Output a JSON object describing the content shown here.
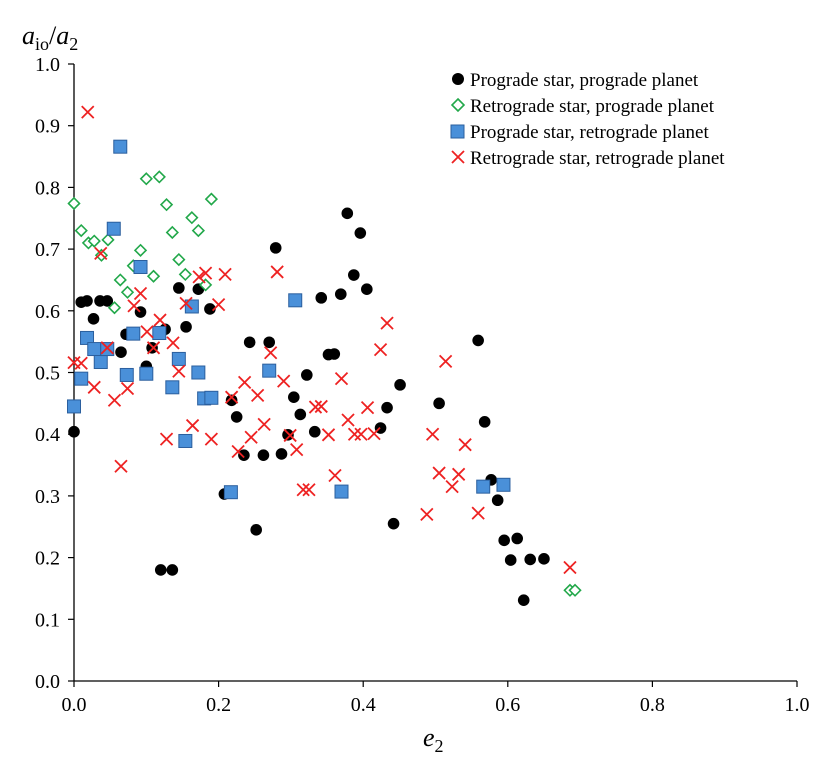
{
  "chart_data": {
    "type": "scatter",
    "title": "",
    "xlabel": {
      "main": "e",
      "sub": "2"
    },
    "ylabel": {
      "main": "a",
      "sub": "io",
      "sep": "/",
      "main2": "a",
      "sub2": "2"
    },
    "xlim": [
      0.0,
      1.0
    ],
    "ylim": [
      0.0,
      1.0
    ],
    "xticks": [
      "0.0",
      "0.2",
      "0.4",
      "0.6",
      "0.8",
      "1.0"
    ],
    "yticks": [
      "0.0",
      "0.1",
      "0.2",
      "0.3",
      "0.4",
      "0.5",
      "0.6",
      "0.7",
      "0.8",
      "0.9",
      "1.0"
    ],
    "xtick_values": [
      0.0,
      0.2,
      0.4,
      0.6,
      0.8,
      1.0
    ],
    "ytick_values": [
      0.0,
      0.1,
      0.2,
      0.3,
      0.4,
      0.5,
      0.6,
      0.7,
      0.8,
      0.9,
      1.0
    ],
    "legend_position": "top-right",
    "series": [
      {
        "name": "Prograde star, prograde planet",
        "marker": "circle",
        "color": "#000000",
        "points": [
          [
            0.0,
            0.404
          ],
          [
            0.01,
            0.614
          ],
          [
            0.018,
            0.616
          ],
          [
            0.027,
            0.587
          ],
          [
            0.036,
            0.616
          ],
          [
            0.046,
            0.616
          ],
          [
            0.065,
            0.533
          ],
          [
            0.072,
            0.562
          ],
          [
            0.092,
            0.598
          ],
          [
            0.1,
            0.51
          ],
          [
            0.108,
            0.54
          ],
          [
            0.12,
            0.18
          ],
          [
            0.126,
            0.57
          ],
          [
            0.136,
            0.18
          ],
          [
            0.145,
            0.637
          ],
          [
            0.155,
            0.574
          ],
          [
            0.172,
            0.635
          ],
          [
            0.188,
            0.603
          ],
          [
            0.208,
            0.303
          ],
          [
            0.218,
            0.455
          ],
          [
            0.225,
            0.428
          ],
          [
            0.235,
            0.366
          ],
          [
            0.243,
            0.549
          ],
          [
            0.252,
            0.245
          ],
          [
            0.262,
            0.366
          ],
          [
            0.27,
            0.549
          ],
          [
            0.279,
            0.702
          ],
          [
            0.287,
            0.368
          ],
          [
            0.296,
            0.399
          ],
          [
            0.304,
            0.46
          ],
          [
            0.313,
            0.432
          ],
          [
            0.322,
            0.496
          ],
          [
            0.333,
            0.404
          ],
          [
            0.342,
            0.621
          ],
          [
            0.352,
            0.529
          ],
          [
            0.36,
            0.53
          ],
          [
            0.369,
            0.627
          ],
          [
            0.378,
            0.758
          ],
          [
            0.387,
            0.658
          ],
          [
            0.396,
            0.726
          ],
          [
            0.405,
            0.635
          ],
          [
            0.424,
            0.41
          ],
          [
            0.433,
            0.443
          ],
          [
            0.442,
            0.255
          ],
          [
            0.451,
            0.48
          ],
          [
            0.505,
            0.45
          ],
          [
            0.559,
            0.552
          ],
          [
            0.568,
            0.42
          ],
          [
            0.577,
            0.326
          ],
          [
            0.586,
            0.293
          ],
          [
            0.595,
            0.228
          ],
          [
            0.604,
            0.196
          ],
          [
            0.613,
            0.231
          ],
          [
            0.622,
            0.131
          ],
          [
            0.631,
            0.197
          ],
          [
            0.65,
            0.198
          ]
        ]
      },
      {
        "name": "Retrograde star, prograde planet",
        "marker": "diamond",
        "color": "#22a84a",
        "points": [
          [
            0.0,
            0.774
          ],
          [
            0.01,
            0.73
          ],
          [
            0.02,
            0.71
          ],
          [
            0.028,
            0.713
          ],
          [
            0.038,
            0.69
          ],
          [
            0.047,
            0.715
          ],
          [
            0.056,
            0.605
          ],
          [
            0.064,
            0.65
          ],
          [
            0.074,
            0.63
          ],
          [
            0.082,
            0.673
          ],
          [
            0.092,
            0.698
          ],
          [
            0.1,
            0.814
          ],
          [
            0.11,
            0.656
          ],
          [
            0.118,
            0.817
          ],
          [
            0.128,
            0.772
          ],
          [
            0.136,
            0.727
          ],
          [
            0.145,
            0.683
          ],
          [
            0.154,
            0.659
          ],
          [
            0.163,
            0.751
          ],
          [
            0.172,
            0.73
          ],
          [
            0.182,
            0.642
          ],
          [
            0.19,
            0.781
          ],
          [
            0.686,
            0.147
          ],
          [
            0.693,
            0.147
          ]
        ]
      },
      {
        "name": "Prograde star, retrograde planet",
        "marker": "square",
        "color": "#4a90d9",
        "stroke": "#2b5f9e",
        "points": [
          [
            0.0,
            0.445
          ],
          [
            0.01,
            0.49
          ],
          [
            0.018,
            0.556
          ],
          [
            0.028,
            0.538
          ],
          [
            0.037,
            0.517
          ],
          [
            0.046,
            0.538
          ],
          [
            0.055,
            0.733
          ],
          [
            0.064,
            0.866
          ],
          [
            0.073,
            0.496
          ],
          [
            0.082,
            0.563
          ],
          [
            0.092,
            0.671
          ],
          [
            0.1,
            0.498
          ],
          [
            0.118,
            0.564
          ],
          [
            0.136,
            0.476
          ],
          [
            0.145,
            0.522
          ],
          [
            0.154,
            0.389
          ],
          [
            0.163,
            0.607
          ],
          [
            0.172,
            0.5
          ],
          [
            0.18,
            0.458
          ],
          [
            0.19,
            0.459
          ],
          [
            0.217,
            0.306
          ],
          [
            0.27,
            0.503
          ],
          [
            0.306,
            0.617
          ],
          [
            0.37,
            0.307
          ],
          [
            0.566,
            0.315
          ],
          [
            0.594,
            0.318
          ]
        ]
      },
      {
        "name": "Retrograde star, retrograde planet",
        "marker": "cross",
        "color": "#ee2222",
        "points": [
          [
            0.0,
            0.516
          ],
          [
            0.01,
            0.515
          ],
          [
            0.019,
            0.922
          ],
          [
            0.028,
            0.476
          ],
          [
            0.037,
            0.693
          ],
          [
            0.046,
            0.54
          ],
          [
            0.056,
            0.455
          ],
          [
            0.065,
            0.348
          ],
          [
            0.074,
            0.474
          ],
          [
            0.083,
            0.608
          ],
          [
            0.092,
            0.628
          ],
          [
            0.101,
            0.566
          ],
          [
            0.11,
            0.54
          ],
          [
            0.119,
            0.585
          ],
          [
            0.128,
            0.392
          ],
          [
            0.137,
            0.548
          ],
          [
            0.145,
            0.502
          ],
          [
            0.155,
            0.612
          ],
          [
            0.164,
            0.414
          ],
          [
            0.173,
            0.655
          ],
          [
            0.182,
            0.661
          ],
          [
            0.19,
            0.392
          ],
          [
            0.2,
            0.61
          ],
          [
            0.209,
            0.659
          ],
          [
            0.218,
            0.46
          ],
          [
            0.227,
            0.372
          ],
          [
            0.236,
            0.484
          ],
          [
            0.245,
            0.395
          ],
          [
            0.254,
            0.463
          ],
          [
            0.263,
            0.416
          ],
          [
            0.272,
            0.532
          ],
          [
            0.281,
            0.663
          ],
          [
            0.29,
            0.486
          ],
          [
            0.299,
            0.398
          ],
          [
            0.308,
            0.375
          ],
          [
            0.317,
            0.31
          ],
          [
            0.325,
            0.31
          ],
          [
            0.334,
            0.444
          ],
          [
            0.342,
            0.445
          ],
          [
            0.352,
            0.399
          ],
          [
            0.361,
            0.333
          ],
          [
            0.37,
            0.49
          ],
          [
            0.379,
            0.423
          ],
          [
            0.388,
            0.4
          ],
          [
            0.397,
            0.4
          ],
          [
            0.406,
            0.443
          ],
          [
            0.415,
            0.401
          ],
          [
            0.424,
            0.537
          ],
          [
            0.433,
            0.58
          ],
          [
            0.488,
            0.27
          ],
          [
            0.496,
            0.4
          ],
          [
            0.505,
            0.337
          ],
          [
            0.514,
            0.518
          ],
          [
            0.523,
            0.315
          ],
          [
            0.532,
            0.335
          ],
          [
            0.541,
            0.383
          ],
          [
            0.559,
            0.272
          ],
          [
            0.686,
            0.184
          ]
        ]
      }
    ]
  }
}
